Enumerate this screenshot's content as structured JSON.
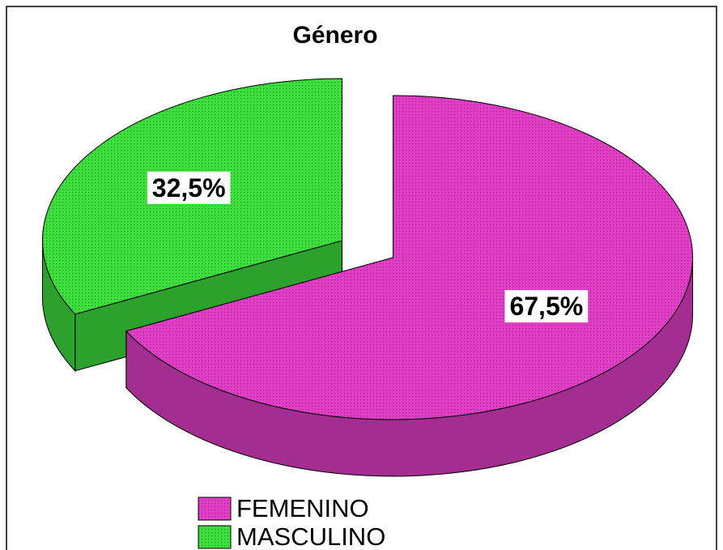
{
  "chart_data": {
    "type": "pie",
    "title": "Género",
    "categories": [
      "FEMENINO",
      "MASCULINO"
    ],
    "values": [
      67.5,
      32.5
    ],
    "value_labels": [
      "67,5%",
      "32,5%"
    ],
    "colors": [
      "#e33ec8",
      "#3ddf3d"
    ]
  }
}
